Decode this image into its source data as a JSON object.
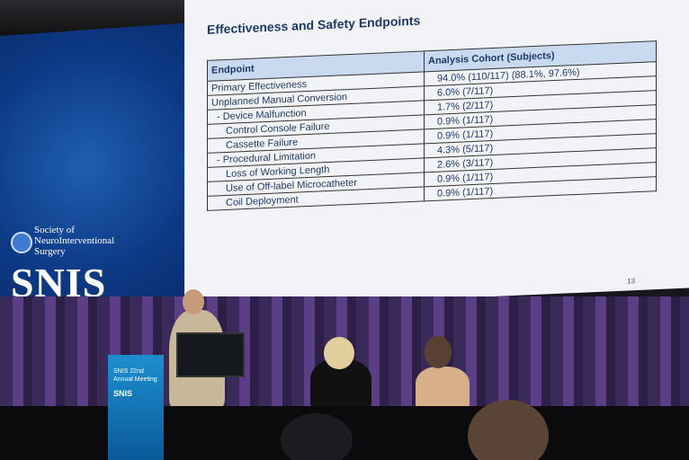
{
  "left_screen": {
    "society": [
      "Society of",
      "NeuroInterventional",
      "Surgery"
    ],
    "logo": "SNIS"
  },
  "slide": {
    "title": "Effectiveness and Safety Endpoints",
    "table": {
      "headers": [
        "Endpoint",
        "Analysis Cohort (Subjects)"
      ],
      "rows": [
        [
          "Primary Effectiveness",
          "94.0% (110/117) (88.1%, 97.6%)"
        ],
        [
          "Unplanned Manual Conversion",
          "6.0% (7/117)"
        ],
        [
          "- Device Malfunction",
          "1.7% (2/117)"
        ],
        [
          "Control Console Failure",
          "0.9% (1/117)"
        ],
        [
          "Cassette Failure",
          "0.9% (1/117)"
        ],
        [
          "- Procedural Limitation",
          "4.3% (5/117)"
        ],
        [
          "Loss of Working Length",
          "2.6% (3/117)"
        ],
        [
          "Use of Off-label Microcatheter",
          "0.9% (1/117)"
        ],
        [
          "Coil Deployment",
          "0.9% (1/117)"
        ]
      ]
    },
    "page_number": "13"
  },
  "podium": {
    "lines": [
      "SNIS 22nd",
      "Annual Meeting"
    ],
    "logo": "SNIS"
  }
}
